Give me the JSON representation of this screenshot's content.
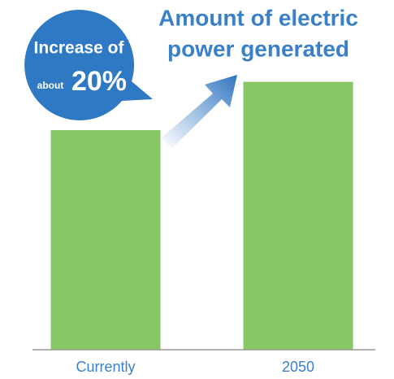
{
  "chart_data": {
    "type": "bar",
    "title": [
      "Amount of electric",
      "power generated"
    ],
    "annotation": {
      "line1": "Increase of",
      "small": "about",
      "big": "20%"
    },
    "categories": [
      "Currently",
      "2050"
    ],
    "values": [
      100,
      122
    ],
    "color": "#86c663",
    "ylim": [
      0,
      160
    ]
  }
}
